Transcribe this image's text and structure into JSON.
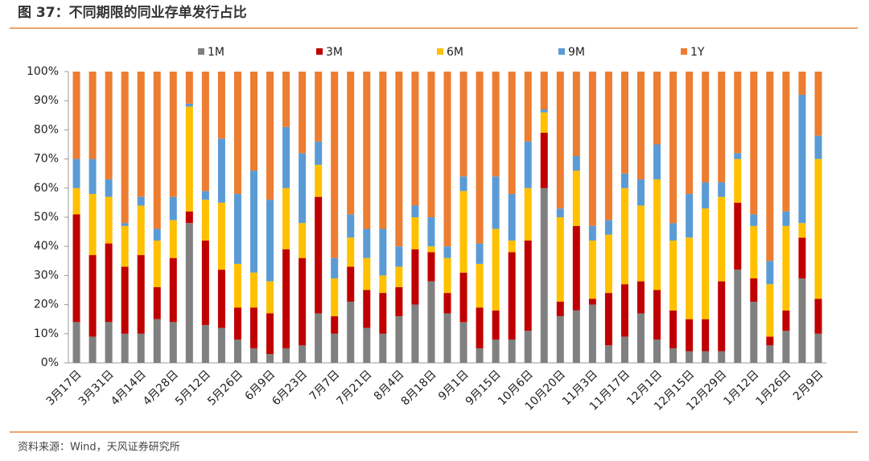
{
  "chart_data": {
    "type": "stacked_bar",
    "title": "图 37：不同期限的同业存单发行占比",
    "source": "资料来源：Wind，天风证券研究所",
    "categories": [
      "3月17日",
      null,
      "3月31日",
      null,
      "4月14日",
      null,
      "4月28日",
      null,
      "5月12日",
      null,
      "5月26日",
      null,
      "6月9日",
      null,
      "6月23日",
      null,
      "7月7日",
      null,
      "7月21日",
      null,
      "8月4日",
      null,
      "8月18日",
      null,
      "9月1日",
      null,
      "9月15日",
      null,
      "10月6日",
      null,
      "10月20日",
      null,
      "11月3日",
      null,
      "11月17日",
      null,
      "12月1日",
      null,
      "12月15日",
      null,
      "12月29日",
      null,
      "1月12日",
      null,
      "1月26日",
      null,
      "2月9日"
    ],
    "series": [
      {
        "name": "1M",
        "color": "#808080",
        "values": [
          14,
          9,
          14,
          10,
          10,
          15,
          14,
          48,
          13,
          12,
          8,
          5,
          3,
          5,
          6,
          17,
          10,
          21,
          12,
          10,
          16,
          20,
          28,
          17,
          14,
          5,
          8,
          8,
          11,
          60,
          16,
          18,
          20,
          6,
          9,
          17,
          8,
          5,
          4,
          4,
          4,
          32,
          21,
          6,
          11,
          29,
          10
        ]
      },
      {
        "name": "3M",
        "color": "#c00000",
        "values": [
          37,
          28,
          27,
          23,
          27,
          11,
          22,
          4,
          29,
          20,
          11,
          14,
          14,
          34,
          30,
          40,
          6,
          12,
          13,
          14,
          10,
          19,
          10,
          7,
          17,
          14,
          10,
          30,
          31,
          19,
          5,
          29,
          2,
          18,
          18,
          11,
          17,
          13,
          11,
          11,
          24,
          23,
          8,
          3,
          7,
          14,
          12
        ]
      },
      {
        "name": "6M",
        "color": "#ffc000",
        "values": [
          9,
          21,
          16,
          14,
          17,
          16,
          13,
          36,
          14,
          23,
          15,
          12,
          11,
          21,
          12,
          11,
          13,
          10,
          11,
          6,
          7,
          11,
          2,
          12,
          28,
          15,
          28,
          4,
          18,
          7,
          29,
          19,
          20,
          20,
          33,
          26,
          38,
          24,
          28,
          38,
          29,
          15,
          18,
          18,
          29,
          5,
          48
        ]
      },
      {
        "name": "9M",
        "color": "#5b9bd5",
        "values": [
          10,
          12,
          6,
          1,
          3,
          4,
          8,
          1,
          3,
          22,
          24,
          35,
          28,
          21,
          24,
          8,
          7,
          8,
          10,
          16,
          7,
          4,
          10,
          4,
          5,
          7,
          18,
          16,
          16,
          1,
          3,
          5,
          5,
          5,
          5,
          9,
          12,
          6,
          15,
          9,
          5,
          2,
          4,
          8,
          5,
          44,
          8
        ]
      },
      {
        "name": "1Y",
        "color": "#ed7d31",
        "values": [
          30,
          30,
          37,
          52,
          43,
          54,
          43,
          11,
          41,
          23,
          42,
          34,
          44,
          19,
          28,
          24,
          64,
          49,
          54,
          54,
          60,
          46,
          50,
          60,
          36,
          59,
          36,
          42,
          24,
          13,
          47,
          29,
          53,
          51,
          35,
          37,
          25,
          52,
          42,
          38,
          38,
          28,
          49,
          65,
          48,
          8,
          22
        ]
      }
    ],
    "ylim": [
      0,
      100
    ],
    "yticks": [
      {
        "value": 0,
        "label": "0%"
      },
      {
        "value": 10,
        "label": "10%"
      },
      {
        "value": 20,
        "label": "20%"
      },
      {
        "value": 30,
        "label": "30%"
      },
      {
        "value": 40,
        "label": "40%"
      },
      {
        "value": 50,
        "label": "50%"
      },
      {
        "value": 60,
        "label": "60%"
      },
      {
        "value": 70,
        "label": "70%"
      },
      {
        "value": 80,
        "label": "80%"
      },
      {
        "value": 90,
        "label": "90%"
      },
      {
        "value": 100,
        "label": "100%"
      }
    ],
    "legend": "top"
  }
}
